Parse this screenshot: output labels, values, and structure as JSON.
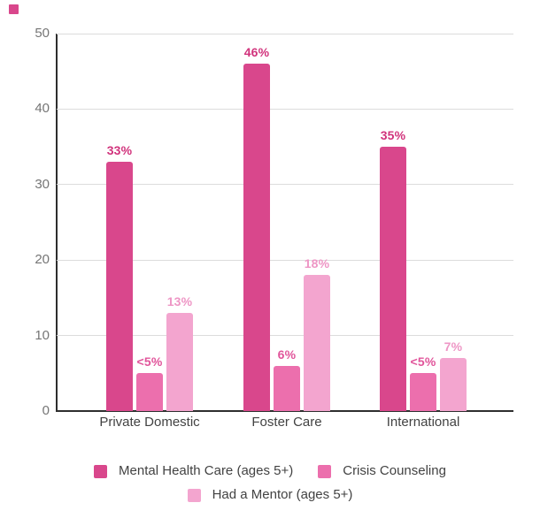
{
  "corner_marker_color": "#d9478c",
  "colors": {
    "background": "#ffffff",
    "axis_line": "#2e2e2e",
    "gridline": "#dcdcdc",
    "tick_text": "#757575",
    "category_text": "#424242",
    "legend_text": "#424242"
  },
  "chart_data": {
    "type": "bar",
    "title": "",
    "xlabel": "",
    "ylabel": "",
    "grid": true,
    "legend_position": "bottom",
    "ylim": [
      0,
      50
    ],
    "y_ticks": [
      0,
      10,
      20,
      30,
      40,
      50
    ],
    "categories": [
      "Private Domestic",
      "Foster Care",
      "International"
    ],
    "series": [
      {
        "name": "Mental Health Care (ages 5+)",
        "color": "#d9478c",
        "label_color": "#d1337c",
        "values": [
          33,
          46,
          35
        ],
        "labels": [
          "33%",
          "46%",
          "35%"
        ]
      },
      {
        "name": "Crisis Counseling",
        "color": "#ec6fad",
        "label_color": "#e1559b",
        "values": [
          5,
          6,
          5
        ],
        "labels": [
          "<5%",
          "6%",
          "<5%"
        ]
      },
      {
        "name": "Had a Mentor (ages 5+)",
        "color": "#f3a5cf",
        "label_color": "#ee96c5",
        "values": [
          13,
          18,
          7
        ],
        "labels": [
          "13%",
          "18%",
          "7%"
        ]
      }
    ]
  }
}
